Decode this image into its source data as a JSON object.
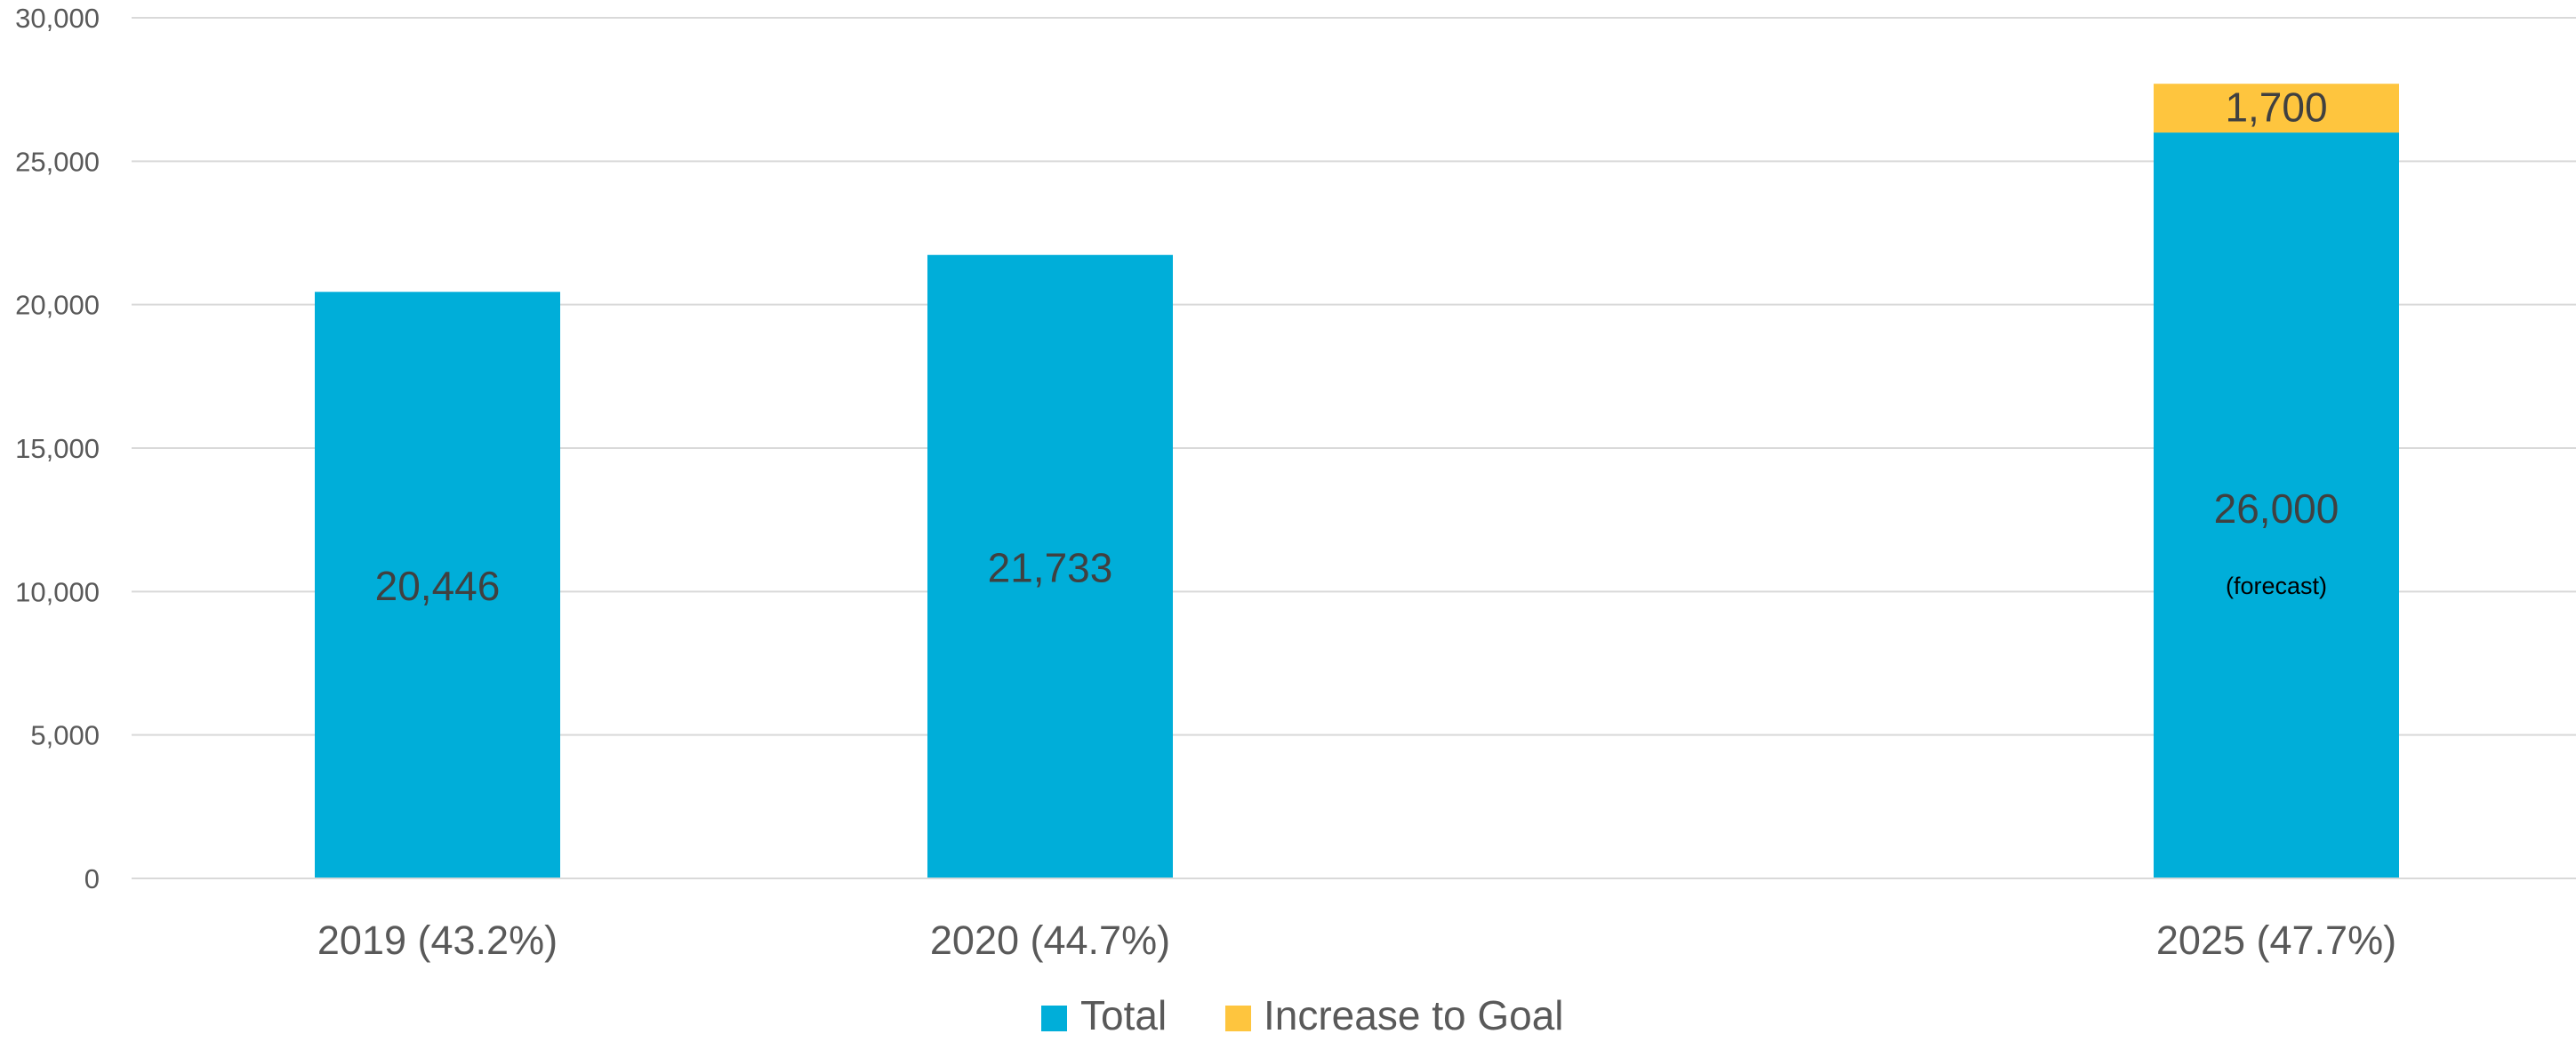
{
  "chart_data": {
    "type": "bar",
    "stacked": true,
    "categories": [
      "2019 (43.2%)",
      "2020 (44.7%)",
      "",
      "2025 (47.7%)"
    ],
    "series": [
      {
        "name": "Total",
        "color": "#00AED9",
        "values": [
          20446,
          21733,
          null,
          26000
        ],
        "labels": [
          "20,446",
          "21,733",
          "",
          "26,000"
        ]
      },
      {
        "name": "Increase to Goal",
        "color": "#FEC53E",
        "values": [
          null,
          null,
          null,
          1700
        ],
        "labels": [
          "",
          "",
          "",
          "1,700"
        ]
      }
    ],
    "annotations": [
      {
        "category_index": 3,
        "text": "(forecast)"
      }
    ],
    "yticks": [
      "0",
      "5,000",
      "10,000",
      "15,000",
      "20,000",
      "25,000",
      "30,000"
    ],
    "ylim": [
      0,
      30000
    ],
    "gridlines": true,
    "legend_position": "bottom",
    "colors": {
      "gridline": "#D9D9D9",
      "text": "#595959",
      "label": "#404040"
    }
  }
}
